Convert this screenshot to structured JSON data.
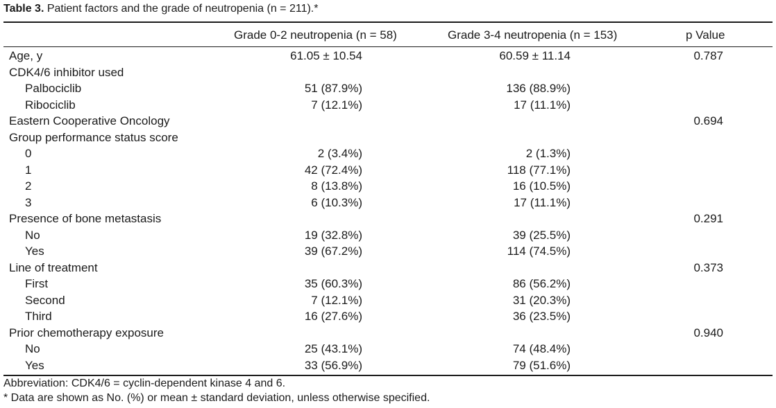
{
  "caption": {
    "label": "Table 3.",
    "text": " Patient factors and the grade of neutropenia (n = 211).*"
  },
  "headers": {
    "col1": "Grade 0-2 neutropenia (n = 58)",
    "col2": "Grade 3-4 neutropenia (n = 153)",
    "col3": "p Value"
  },
  "rows": [
    {
      "label": "Age, y",
      "g02": "61.05 ± 10.54",
      "g34": "60.59 ± 11.14",
      "p": "0.787",
      "indent": false
    },
    {
      "label": "CDK4/6 inhibitor used",
      "g02": "",
      "g34": "",
      "p": "",
      "indent": false
    },
    {
      "label": "Palbociclib",
      "g02": "51 (87.9%)",
      "g34": "136 (88.9%)",
      "p": "",
      "indent": true
    },
    {
      "label": "Ribociclib",
      "g02": "7 (12.1%)",
      "g34": "17 (11.1%)",
      "p": "",
      "indent": true
    },
    {
      "label": "Eastern Cooperative Oncology",
      "g02": "",
      "g34": "",
      "p": "0.694",
      "indent": false
    },
    {
      "label": "Group performance status score",
      "g02": "",
      "g34": "",
      "p": "",
      "indent": false
    },
    {
      "label": "0",
      "g02": "2 (3.4%)",
      "g34": "2 (1.3%)",
      "p": "",
      "indent": true
    },
    {
      "label": "1",
      "g02": "42 (72.4%)",
      "g34": "118 (77.1%)",
      "p": "",
      "indent": true
    },
    {
      "label": "2",
      "g02": "8 (13.8%)",
      "g34": "16 (10.5%)",
      "p": "",
      "indent": true
    },
    {
      "label": "3",
      "g02": "6 (10.3%)",
      "g34": "17 (11.1%)",
      "p": "",
      "indent": true
    },
    {
      "label": "Presence of bone metastasis",
      "g02": "",
      "g34": "",
      "p": "0.291",
      "indent": false
    },
    {
      "label": "No",
      "g02": "19 (32.8%)",
      "g34": "39 (25.5%)",
      "p": "",
      "indent": true
    },
    {
      "label": "Yes",
      "g02": "39 (67.2%)",
      "g34": "114 (74.5%)",
      "p": "",
      "indent": true
    },
    {
      "label": "Line of treatment",
      "g02": "",
      "g34": "",
      "p": "0.373",
      "indent": false
    },
    {
      "label": "First",
      "g02": "35 (60.3%)",
      "g34": "86 (56.2%)",
      "p": "",
      "indent": true
    },
    {
      "label": "Second",
      "g02": "7 (12.1%)",
      "g34": "31 (20.3%)",
      "p": "",
      "indent": true
    },
    {
      "label": "Third",
      "g02": "16 (27.6%)",
      "g34": "36 (23.5%)",
      "p": "",
      "indent": true
    },
    {
      "label": "Prior chemotherapy exposure",
      "g02": "",
      "g34": "",
      "p": "0.940",
      "indent": false
    },
    {
      "label": "No",
      "g02": "25 (43.1%)",
      "g34": "74 (48.4%)",
      "p": "",
      "indent": true
    },
    {
      "label": "Yes",
      "g02": "33 (56.9%)",
      "g34": "79 (51.6%)",
      "p": "",
      "indent": true
    }
  ],
  "footnotes": {
    "abbreviation": "Abbreviation: CDK4/6 = cyclin-dependent kinase 4 and 6.",
    "note": "* Data are shown as No. (%) or mean ± standard deviation, unless otherwise specified."
  }
}
